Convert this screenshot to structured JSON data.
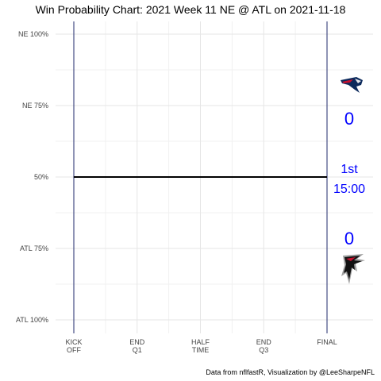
{
  "chart_data": {
    "type": "line",
    "title": "Win Probability Chart: 2021 Week 11 NE @ ATL on 2021-11-18",
    "x_ticks": [
      {
        "value": 0,
        "lines": [
          "KICK",
          "OFF"
        ]
      },
      {
        "value": 15,
        "lines": [
          "END",
          "Q1"
        ]
      },
      {
        "value": 30,
        "lines": [
          "HALF",
          "TIME"
        ]
      },
      {
        "value": 45,
        "lines": [
          "END",
          "Q3"
        ]
      },
      {
        "value": 60,
        "lines": [
          "FINAL"
        ]
      }
    ],
    "xlim": [
      0,
      60
    ],
    "y_ticks": [
      {
        "value": 1.0,
        "label": "NE 100%"
      },
      {
        "value": 0.75,
        "label": "NE 75%"
      },
      {
        "value": 0.5,
        "label": "50%"
      },
      {
        "value": 0.25,
        "label": "ATL 75%"
      },
      {
        "value": 0.0,
        "label": "ATL 100%"
      }
    ],
    "ylim": [
      0,
      1
    ],
    "series": [
      {
        "x": [
          0,
          60
        ],
        "y": [
          0.5,
          0.5
        ],
        "color": "#000000"
      }
    ],
    "vertical_lines": [
      0,
      60
    ],
    "vertical_line_color": "#1f2a6b",
    "grid": true,
    "legend": "none"
  },
  "scoreboard": {
    "home_team_icon": "patriots-logo",
    "away_team_icon": "falcons-logo",
    "ne_score": "0",
    "atl_score": "0",
    "quarter": "1st",
    "clock": "15:00",
    "score_color": "#0000ff"
  },
  "credit": "Data from nflfastR, Visualization by @LeeSharpeNFL"
}
